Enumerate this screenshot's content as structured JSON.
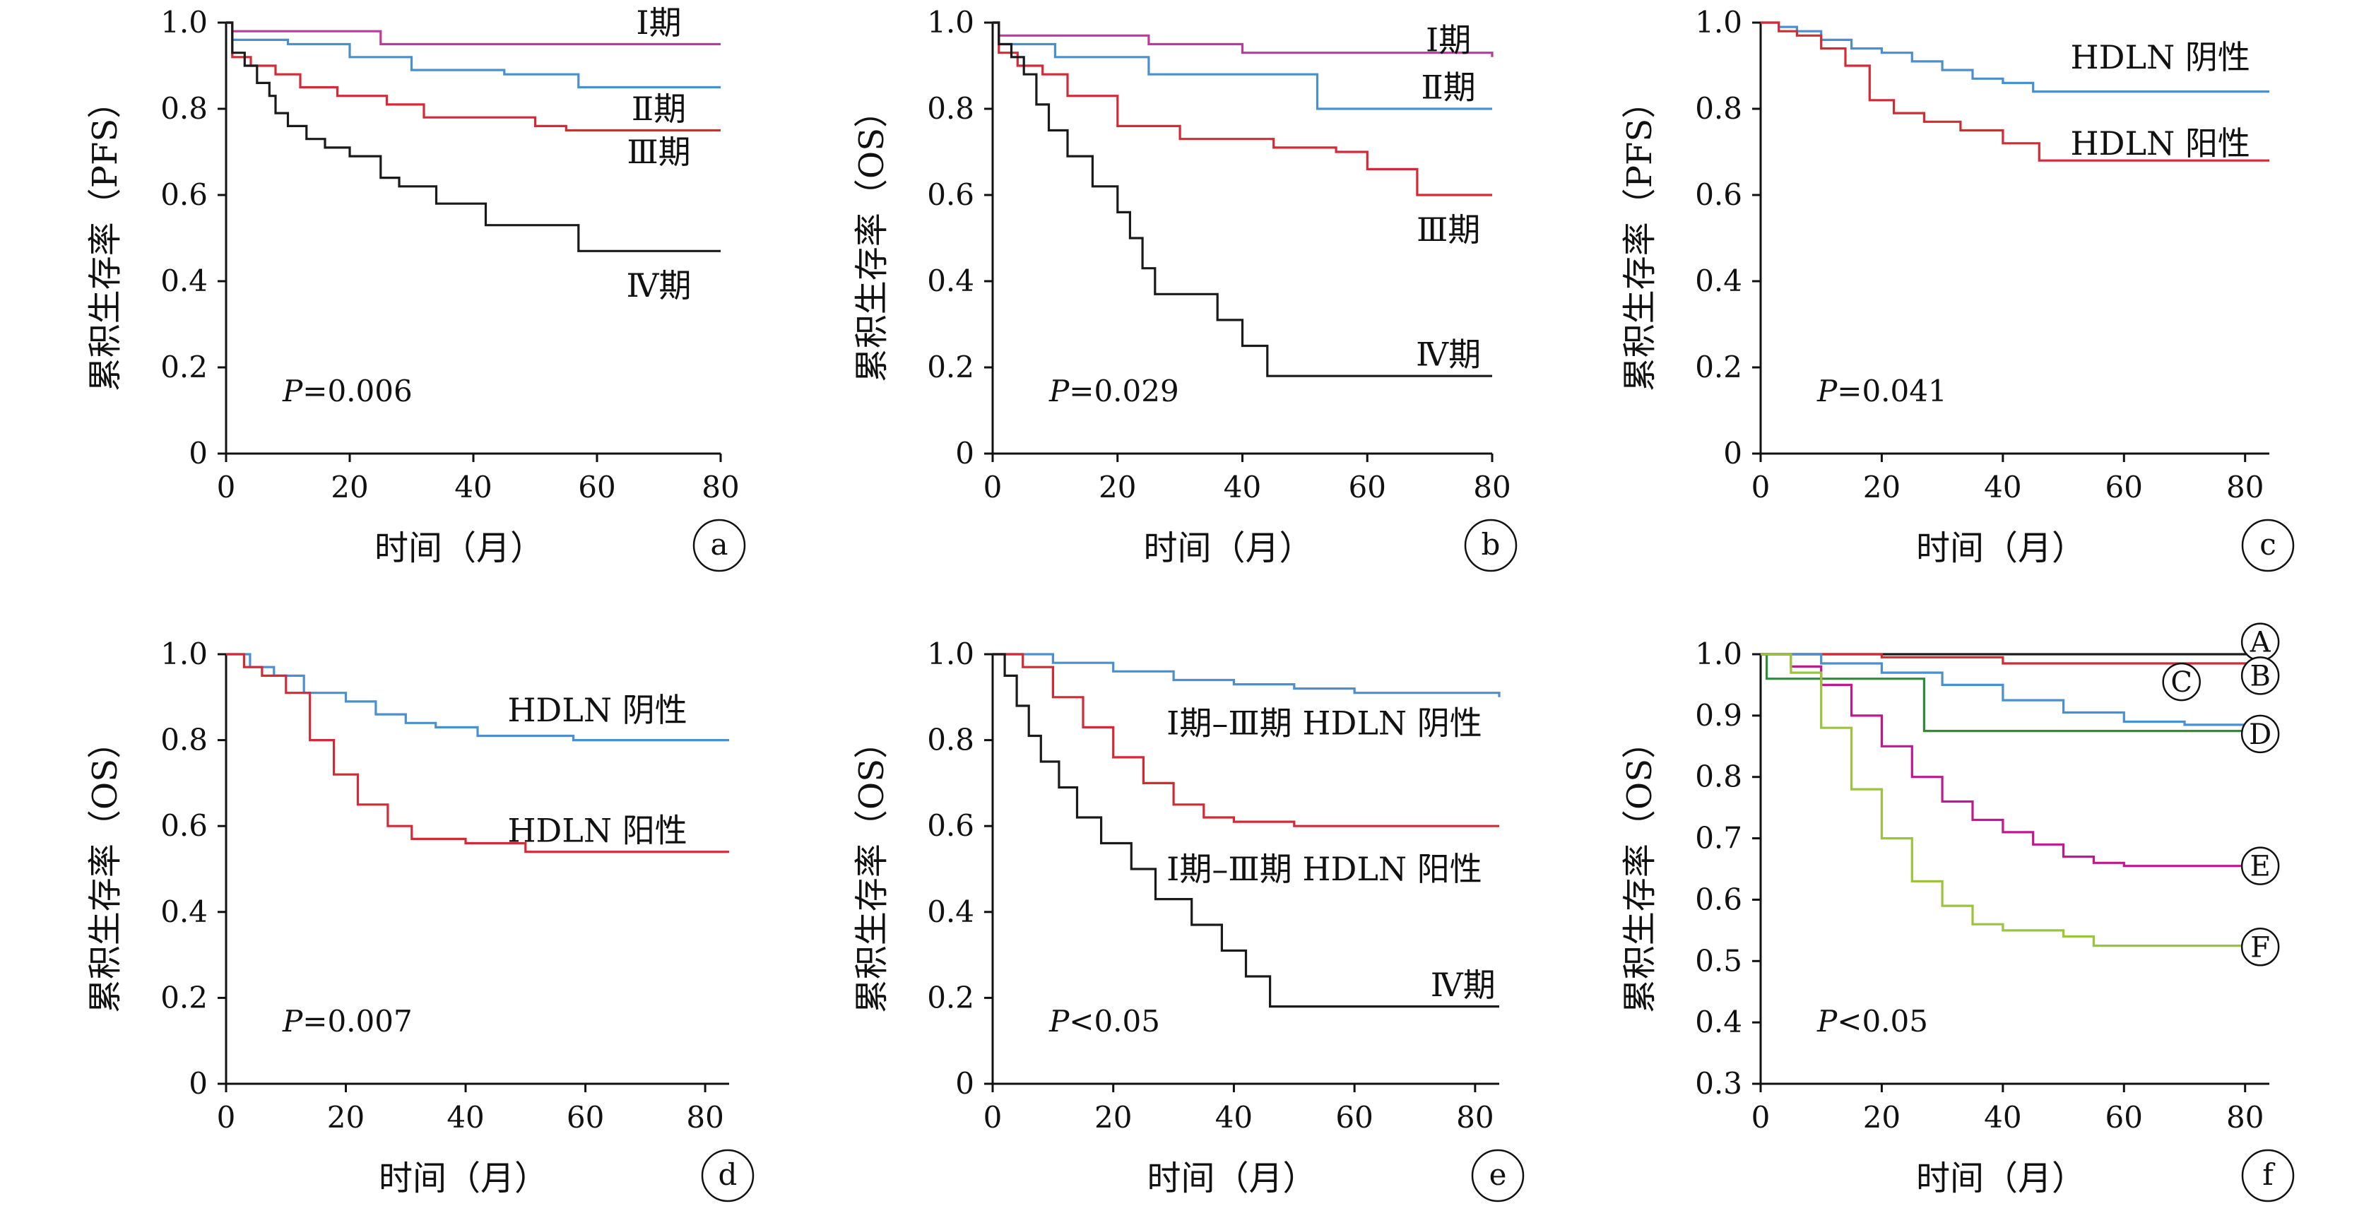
{
  "figure": {
    "background": "#ffffff",
    "axis_color": "#111111"
  },
  "chart_data": [
    {
      "panel": "a",
      "type": "line",
      "title": "",
      "xlabel": "时间（月）",
      "ylabel": "累积生存率（PFS）",
      "xlim": [
        0,
        80
      ],
      "ylim": [
        0,
        1.0
      ],
      "x_ticks": [
        "0",
        "20",
        "40",
        "60",
        "80"
      ],
      "y_ticks": [
        "0",
        "0.2",
        "0.4",
        "0.6",
        "0.8",
        "1.0"
      ],
      "annotation_p": "P=0.006",
      "series": [
        {
          "name": "Ⅰ期",
          "color": "#c0399a",
          "x": [
            0,
            1,
            25,
            80
          ],
          "y": [
            1.0,
            0.98,
            0.95,
            0.95
          ]
        },
        {
          "name": "Ⅱ期",
          "color": "#4a8fd0",
          "x": [
            0,
            1,
            10,
            20,
            30,
            45,
            57,
            80
          ],
          "y": [
            1.0,
            0.96,
            0.95,
            0.92,
            0.89,
            0.88,
            0.85,
            0.85
          ]
        },
        {
          "name": "Ⅲ期",
          "color": "#d42a35",
          "x": [
            0,
            1,
            4,
            8,
            12,
            18,
            26,
            32,
            45,
            50,
            55,
            80
          ],
          "y": [
            1.0,
            0.92,
            0.9,
            0.88,
            0.85,
            0.83,
            0.81,
            0.78,
            0.78,
            0.76,
            0.75,
            0.75
          ]
        },
        {
          "name": "Ⅳ期",
          "color": "#1a1a1a",
          "x": [
            0,
            1,
            3,
            5,
            7,
            8,
            10,
            13,
            16,
            20,
            25,
            28,
            34,
            42,
            50,
            57,
            80
          ],
          "y": [
            1.0,
            0.93,
            0.9,
            0.86,
            0.83,
            0.79,
            0.76,
            0.73,
            0.71,
            0.69,
            0.64,
            0.62,
            0.58,
            0.53,
            0.53,
            0.47,
            0.47
          ]
        }
      ]
    },
    {
      "panel": "b",
      "type": "line",
      "title": "",
      "xlabel": "时间（月）",
      "ylabel": "累积生存率（OS）",
      "xlim": [
        0,
        80
      ],
      "ylim": [
        0,
        1.0
      ],
      "x_ticks": [
        "0",
        "20",
        "40",
        "60",
        "80"
      ],
      "y_ticks": [
        "0",
        "0.2",
        "0.4",
        "0.6",
        "0.8",
        "1.0"
      ],
      "annotation_p": "P=0.029",
      "series": [
        {
          "name": "Ⅰ期",
          "color": "#c0399a",
          "x": [
            0,
            1,
            25,
            40,
            80
          ],
          "y": [
            1.0,
            0.97,
            0.95,
            0.93,
            0.92
          ]
        },
        {
          "name": "Ⅱ期",
          "color": "#4a8fd0",
          "x": [
            0,
            1,
            10,
            25,
            52,
            80
          ],
          "y": [
            1.0,
            0.95,
            0.92,
            0.88,
            0.8,
            0.8
          ]
        },
        {
          "name": "Ⅲ期",
          "color": "#d42a35",
          "x": [
            0,
            1,
            4,
            8,
            12,
            20,
            30,
            45,
            55,
            60,
            68,
            80
          ],
          "y": [
            1.0,
            0.93,
            0.9,
            0.88,
            0.83,
            0.76,
            0.73,
            0.71,
            0.7,
            0.66,
            0.6,
            0.6
          ]
        },
        {
          "name": "Ⅳ期",
          "color": "#1a1a1a",
          "x": [
            0,
            1,
            3,
            5,
            7,
            9,
            12,
            16,
            20,
            22,
            24,
            26,
            30,
            36,
            40,
            44,
            80
          ],
          "y": [
            1.0,
            0.95,
            0.92,
            0.88,
            0.81,
            0.75,
            0.69,
            0.62,
            0.56,
            0.5,
            0.43,
            0.37,
            0.37,
            0.31,
            0.25,
            0.18,
            0.18
          ]
        }
      ]
    },
    {
      "panel": "c",
      "type": "line",
      "title": "",
      "xlabel": "时间（月）",
      "ylabel": "累积生存率（PFS）",
      "xlim": [
        0,
        80
      ],
      "ylim": [
        0,
        1.0
      ],
      "x_ticks": [
        "0",
        "20",
        "40",
        "60",
        "80"
      ],
      "y_ticks": [
        "0",
        "0.2",
        "0.4",
        "0.6",
        "0.8",
        "1.0"
      ],
      "annotation_p": "P=0.041",
      "series": [
        {
          "name": "HDLN 阴性",
          "color": "#4a8fd0",
          "x": [
            0,
            3,
            6,
            10,
            15,
            20,
            25,
            30,
            35,
            40,
            45,
            84
          ],
          "y": [
            1.0,
            0.99,
            0.98,
            0.96,
            0.94,
            0.93,
            0.91,
            0.89,
            0.87,
            0.86,
            0.84,
            0.84
          ]
        },
        {
          "name": "HDLN 阳性",
          "color": "#d42a35",
          "x": [
            0,
            3,
            6,
            10,
            14,
            18,
            22,
            27,
            33,
            40,
            46,
            84
          ],
          "y": [
            1.0,
            0.98,
            0.97,
            0.94,
            0.9,
            0.82,
            0.79,
            0.77,
            0.75,
            0.72,
            0.68,
            0.68
          ]
        }
      ]
    },
    {
      "panel": "d",
      "type": "line",
      "title": "",
      "xlabel": "时间（月）",
      "ylabel": "累积生存率（OS）",
      "xlim": [
        0,
        84
      ],
      "ylim": [
        0,
        1.0
      ],
      "x_ticks": [
        "0",
        "20",
        "40",
        "60",
        "80"
      ],
      "y_ticks": [
        "0",
        "0.2",
        "0.4",
        "0.6",
        "0.8",
        "1.0"
      ],
      "annotation_p": "P=0.007",
      "series": [
        {
          "name": "HDLN 阴性",
          "color": "#4a8fd0",
          "x": [
            0,
            4,
            8,
            13,
            20,
            25,
            30,
            35,
            42,
            58,
            84
          ],
          "y": [
            1.0,
            0.97,
            0.95,
            0.91,
            0.89,
            0.86,
            0.84,
            0.83,
            0.81,
            0.8,
            0.8
          ]
        },
        {
          "name": "HDLN 阳性",
          "color": "#d42a35",
          "x": [
            0,
            3,
            6,
            10,
            14,
            18,
            22,
            27,
            31,
            40,
            50,
            84
          ],
          "y": [
            1.0,
            0.97,
            0.95,
            0.91,
            0.8,
            0.72,
            0.65,
            0.6,
            0.57,
            0.56,
            0.54,
            0.54
          ]
        }
      ]
    },
    {
      "panel": "e",
      "type": "line",
      "title": "",
      "xlabel": "时间（月）",
      "ylabel": "累积生存率（OS）",
      "xlim": [
        0,
        84
      ],
      "ylim": [
        0,
        1.0
      ],
      "x_ticks": [
        "0",
        "20",
        "40",
        "60",
        "80"
      ],
      "y_ticks": [
        "0",
        "0.2",
        "0.4",
        "0.6",
        "0.8",
        "1.0"
      ],
      "annotation_p": "P<0.05",
      "series": [
        {
          "name": "Ⅰ期–Ⅲ期 HDLN 阴性",
          "color": "#4a8fd0",
          "x": [
            0,
            10,
            20,
            30,
            40,
            50,
            60,
            84
          ],
          "y": [
            1.0,
            0.98,
            0.96,
            0.94,
            0.93,
            0.92,
            0.91,
            0.9
          ]
        },
        {
          "name": "Ⅰ期–Ⅲ期 HDLN 阳性",
          "color": "#d42a35",
          "x": [
            0,
            5,
            10,
            15,
            20,
            25,
            30,
            35,
            40,
            50,
            60,
            84
          ],
          "y": [
            1.0,
            0.97,
            0.9,
            0.83,
            0.76,
            0.7,
            0.65,
            0.62,
            0.61,
            0.6,
            0.6,
            0.6
          ]
        },
        {
          "name": "Ⅳ期",
          "color": "#1a1a1a",
          "x": [
            0,
            2,
            4,
            6,
            8,
            11,
            14,
            18,
            23,
            27,
            33,
            38,
            42,
            46,
            84
          ],
          "y": [
            1.0,
            0.95,
            0.88,
            0.81,
            0.75,
            0.69,
            0.62,
            0.56,
            0.5,
            0.43,
            0.37,
            0.31,
            0.25,
            0.18,
            0.18
          ]
        }
      ]
    },
    {
      "panel": "f",
      "type": "line",
      "title": "",
      "xlabel": "时间（月）",
      "ylabel": "累积生存率（OS）",
      "xlim": [
        0,
        84
      ],
      "ylim": [
        0.3,
        1.0
      ],
      "x_ticks": [
        "0",
        "20",
        "40",
        "60",
        "80"
      ],
      "y_ticks": [
        "0.3",
        "0.4",
        "0.5",
        "0.6",
        "0.7",
        "0.8",
        "0.9",
        "1.0"
      ],
      "annotation_p": "P<0.05",
      "series": [
        {
          "name": "A",
          "color": "#1a1a1a",
          "x": [
            0,
            84
          ],
          "y": [
            1.0,
            1.0
          ]
        },
        {
          "name": "B",
          "color": "#d42a35",
          "x": [
            0,
            20,
            40,
            84
          ],
          "y": [
            1.0,
            0.995,
            0.985,
            0.985
          ]
        },
        {
          "name": "C",
          "color": "#4a8fd0",
          "x": [
            0,
            10,
            20,
            30,
            40,
            50,
            60,
            70,
            84
          ],
          "y": [
            1.0,
            0.985,
            0.97,
            0.95,
            0.925,
            0.905,
            0.89,
            0.885,
            0.88
          ]
        },
        {
          "name": "D",
          "color": "#2b8c3a",
          "x": [
            0,
            1,
            26,
            27,
            84
          ],
          "y": [
            1.0,
            0.96,
            0.96,
            0.875,
            0.87
          ]
        },
        {
          "name": "E",
          "color": "#c0188f",
          "x": [
            0,
            5,
            10,
            15,
            20,
            25,
            30,
            35,
            40,
            45,
            50,
            55,
            60,
            84
          ],
          "y": [
            1.0,
            0.98,
            0.95,
            0.9,
            0.85,
            0.8,
            0.76,
            0.73,
            0.71,
            0.69,
            0.67,
            0.66,
            0.655,
            0.655
          ]
        },
        {
          "name": "F",
          "color": "#9ac43a",
          "x": [
            0,
            5,
            10,
            15,
            20,
            25,
            30,
            35,
            40,
            50,
            55,
            60,
            84
          ],
          "y": [
            1.0,
            0.97,
            0.88,
            0.78,
            0.7,
            0.63,
            0.59,
            0.56,
            0.55,
            0.54,
            0.525,
            0.525,
            0.525
          ]
        }
      ]
    }
  ]
}
